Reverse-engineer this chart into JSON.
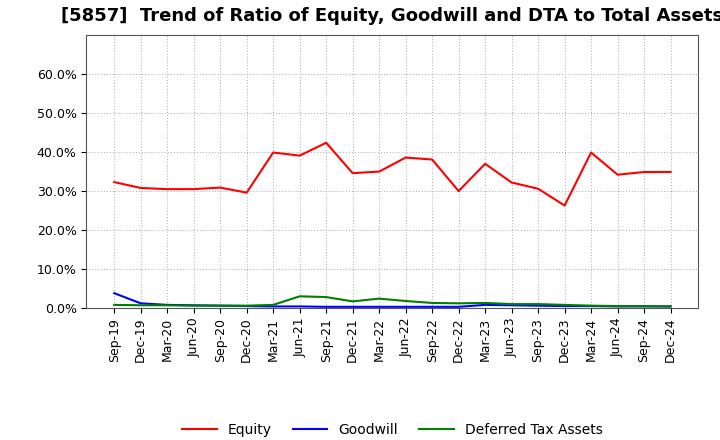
{
  "title": "[5857]  Trend of Ratio of Equity, Goodwill and DTA to Total Assets",
  "x_labels": [
    "Sep-19",
    "Dec-19",
    "Mar-20",
    "Jun-20",
    "Sep-20",
    "Dec-20",
    "Mar-21",
    "Jun-21",
    "Sep-21",
    "Dec-21",
    "Mar-22",
    "Jun-22",
    "Sep-22",
    "Dec-22",
    "Mar-23",
    "Jun-23",
    "Sep-23",
    "Dec-23",
    "Mar-24",
    "Jun-24",
    "Sep-24",
    "Dec-24"
  ],
  "equity": [
    0.323,
    0.308,
    0.305,
    0.305,
    0.309,
    0.296,
    0.399,
    0.391,
    0.424,
    0.346,
    0.35,
    0.386,
    0.381,
    0.3,
    0.37,
    0.322,
    0.306,
    0.263,
    0.399,
    0.342,
    0.349,
    0.349
  ],
  "goodwill": [
    0.038,
    0.012,
    0.008,
    0.007,
    0.006,
    0.005,
    0.004,
    0.004,
    0.003,
    0.003,
    0.003,
    0.003,
    0.003,
    0.003,
    0.008,
    0.007,
    0.006,
    0.005,
    0.005,
    0.004,
    0.004,
    0.004
  ],
  "dta": [
    0.008,
    0.007,
    0.007,
    0.006,
    0.006,
    0.006,
    0.008,
    0.03,
    0.028,
    0.017,
    0.024,
    0.018,
    0.013,
    0.012,
    0.013,
    0.01,
    0.01,
    0.008,
    0.006,
    0.005,
    0.005,
    0.004
  ],
  "equity_color": "#ff0000",
  "goodwill_color": "#0000ff",
  "dta_color": "#008000",
  "ylim": [
    0.0,
    0.7
  ],
  "yticks": [
    0.0,
    0.1,
    0.2,
    0.3,
    0.4,
    0.5,
    0.6
  ],
  "background_color": "#ffffff",
  "plot_bg_color": "#ffffff",
  "grid_color": "#aaaaaa",
  "title_fontsize": 13,
  "tick_fontsize": 9,
  "legend_fontsize": 10
}
